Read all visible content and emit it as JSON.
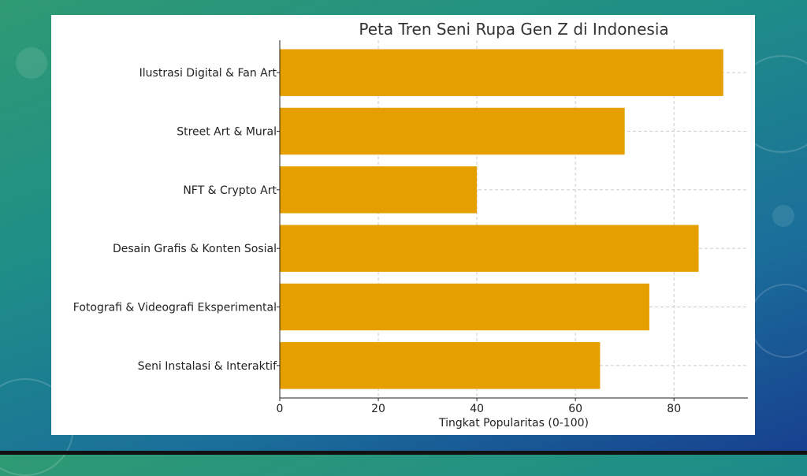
{
  "chart_data": {
    "type": "bar",
    "orientation": "horizontal",
    "title": "Peta Tren Seni Rupa Gen Z di Indonesia",
    "xlabel": "Tingkat Popularitas (0-100)",
    "ylabel": "",
    "categories": [
      "Ilustrasi Digital & Fan Art",
      "Street Art & Mural",
      "NFT & Crypto Art",
      "Desain Grafis & Konten Sosial",
      "Fotografi & Videografi Eksperimental",
      "Seni Instalasi & Interaktif"
    ],
    "values": [
      90,
      70,
      40,
      85,
      75,
      65
    ],
    "xticks": [
      0,
      20,
      40,
      60,
      80
    ],
    "xlim": [
      0,
      95
    ],
    "grid": true,
    "bar_color": "#E5A000"
  }
}
